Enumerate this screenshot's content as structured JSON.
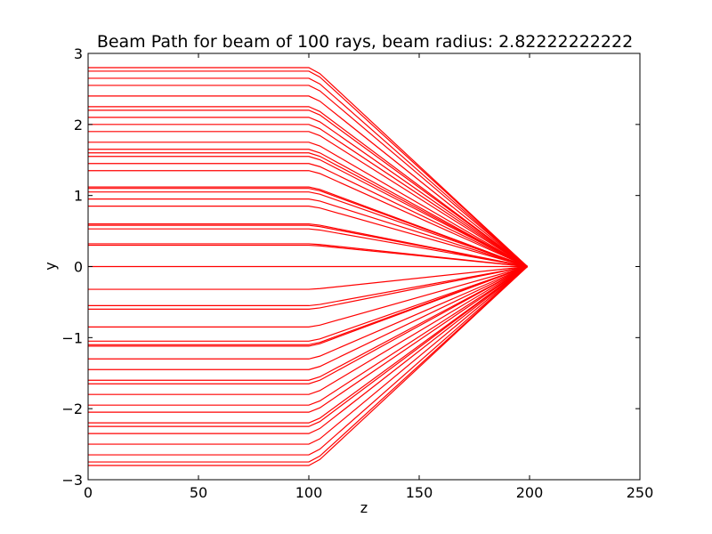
{
  "chart_data": {
    "type": "line",
    "title": "Beam Path for beam of 100 rays, beam radius: 2.82222222222",
    "xlabel": "z",
    "ylabel": "y",
    "xlim": [
      0,
      250
    ],
    "ylim": [
      -3,
      3
    ],
    "xticks": [
      0,
      50,
      100,
      150,
      200,
      250
    ],
    "xtick_labels": [
      "0",
      "50",
      "100",
      "150",
      "200",
      "250"
    ],
    "yticks": [
      -3,
      -2,
      -1,
      0,
      1,
      2,
      3
    ],
    "ytick_labels": [
      "−3",
      "−2",
      "−1",
      "0",
      "1",
      "2",
      "3"
    ],
    "grid": false,
    "line_color": "#ff0000",
    "ray_path_z": [
      0,
      100,
      105,
      199
    ],
    "ray_heights": [
      2.8,
      2.75,
      2.65,
      2.55,
      2.4,
      2.25,
      2.2,
      2.1,
      2.0,
      1.9,
      1.75,
      1.65,
      1.6,
      1.55,
      1.45,
      1.35,
      1.12,
      1.1,
      1.05,
      0.95,
      0.85,
      0.6,
      0.58,
      0.53,
      0.32,
      0.3,
      0.0,
      -0.32,
      -0.55,
      -0.6,
      -0.85,
      -1.05,
      -1.1,
      -1.12,
      -1.3,
      -1.45,
      -1.6,
      -1.65,
      -1.8,
      -1.95,
      -2.05,
      -2.2,
      -2.25,
      -2.35,
      -2.5,
      -2.65,
      -2.75,
      -2.8
    ],
    "focus": {
      "z": 199,
      "y": 0
    }
  }
}
